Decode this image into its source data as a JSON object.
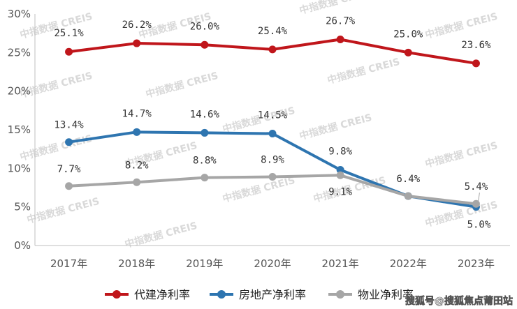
{
  "chart_data": {
    "type": "line",
    "categories": [
      "2017年",
      "2018年",
      "2019年",
      "2020年",
      "2021年",
      "2022年",
      "2023年"
    ],
    "ylim": [
      0,
      30
    ],
    "yticks": [
      "0%",
      "5%",
      "10%",
      "15%",
      "20%",
      "25%",
      "30%"
    ],
    "grid": false,
    "legend_position": "bottom",
    "series": [
      {
        "name": "代建净利率",
        "color": "#c0161b",
        "values": [
          25.1,
          26.2,
          26.0,
          25.4,
          26.7,
          25.0,
          23.6
        ],
        "labels": [
          "25.1%",
          "26.2%",
          "26.0%",
          "25.4%",
          "26.7%",
          "25.0%",
          "23.6%"
        ]
      },
      {
        "name": "房地产净利率",
        "color": "#2e75b0",
        "values": [
          13.4,
          14.7,
          14.6,
          14.5,
          9.8,
          6.4,
          5.0
        ],
        "labels": [
          "13.4%",
          "14.7%",
          "14.6%",
          "14.5%",
          "9.8%",
          "6.4%",
          "5.0%"
        ]
      },
      {
        "name": "物业净利率",
        "color": "#a6a6a6",
        "values": [
          7.7,
          8.2,
          8.8,
          8.9,
          9.1,
          6.4,
          5.4
        ],
        "labels": [
          "7.7%",
          "8.2%",
          "8.8%",
          "8.9%",
          "9.1%",
          "",
          "5.4%"
        ]
      }
    ]
  },
  "watermark": "中指数据 CREIS",
  "credit": "搜狐号@搜狐焦点莆田站"
}
